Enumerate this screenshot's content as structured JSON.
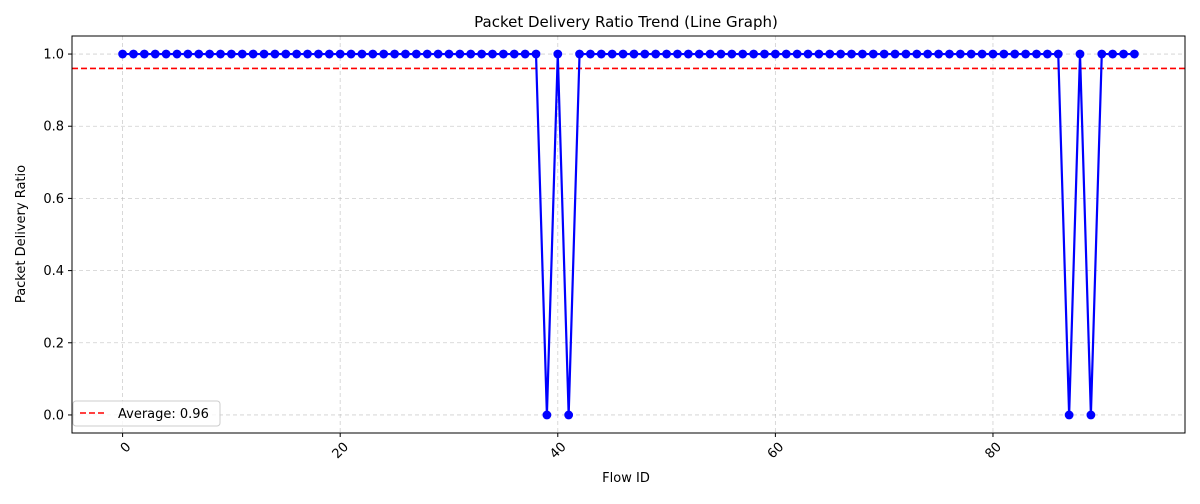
{
  "chart_data": {
    "type": "line",
    "title": "Packet Delivery Ratio Trend (Line Graph)",
    "xlabel": "Flow ID",
    "ylabel": "Packet Delivery Ratio",
    "xlim": [
      -4.65,
      97.65
    ],
    "ylim": [
      -0.05,
      1.05
    ],
    "x_ticks": [
      0,
      20,
      40,
      60,
      80
    ],
    "y_ticks": [
      0.0,
      0.2,
      0.4,
      0.6,
      0.8,
      1.0
    ],
    "x_tick_labels": [
      "0",
      "20",
      "40",
      "60",
      "80"
    ],
    "y_tick_labels": [
      "0.0",
      "0.2",
      "0.4",
      "0.6",
      "0.8",
      "1.0"
    ],
    "grid": true,
    "x_tick_rotation_deg": 45,
    "series": [
      {
        "color": "#0000ff",
        "marker": "circle",
        "x": [
          0,
          1,
          2,
          3,
          4,
          5,
          6,
          7,
          8,
          9,
          10,
          11,
          12,
          13,
          14,
          15,
          16,
          17,
          18,
          19,
          20,
          21,
          22,
          23,
          24,
          25,
          26,
          27,
          28,
          29,
          30,
          31,
          32,
          33,
          34,
          35,
          36,
          37,
          38,
          39,
          40,
          41,
          42,
          43,
          44,
          45,
          46,
          47,
          48,
          49,
          50,
          51,
          52,
          53,
          54,
          55,
          56,
          57,
          58,
          59,
          60,
          61,
          62,
          63,
          64,
          65,
          66,
          67,
          68,
          69,
          70,
          71,
          72,
          73,
          74,
          75,
          76,
          77,
          78,
          79,
          80,
          81,
          82,
          83,
          84,
          85,
          86,
          87,
          88,
          89,
          90,
          91,
          92,
          93
        ],
        "y": [
          1,
          1,
          1,
          1,
          1,
          1,
          1,
          1,
          1,
          1,
          1,
          1,
          1,
          1,
          1,
          1,
          1,
          1,
          1,
          1,
          1,
          1,
          1,
          1,
          1,
          1,
          1,
          1,
          1,
          1,
          1,
          1,
          1,
          1,
          1,
          1,
          1,
          1,
          1,
          0,
          1,
          0,
          1,
          1,
          1,
          1,
          1,
          1,
          1,
          1,
          1,
          1,
          1,
          1,
          1,
          1,
          1,
          1,
          1,
          1,
          1,
          1,
          1,
          1,
          1,
          1,
          1,
          1,
          1,
          1,
          1,
          1,
          1,
          1,
          1,
          1,
          1,
          1,
          1,
          1,
          1,
          1,
          1,
          1,
          1,
          1,
          1,
          0,
          1,
          0,
          1,
          1,
          1,
          1
        ]
      }
    ],
    "reference_lines": [
      {
        "orientation": "horizontal",
        "y": 0.96,
        "color": "#ff0000",
        "style": "dashed",
        "label": "Average: 0.96"
      }
    ],
    "legend": {
      "placement": "lower-left",
      "entries": [
        "Average: 0.96"
      ]
    }
  }
}
